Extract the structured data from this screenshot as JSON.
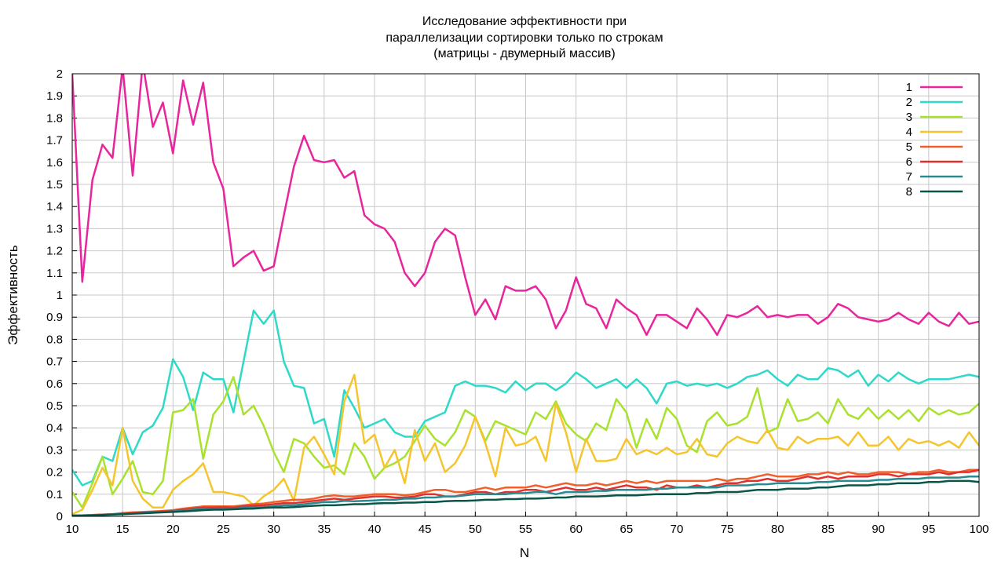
{
  "chart_data": {
    "type": "line",
    "title_lines": [
      "Исследование эффективности при",
      "параллелизации сортировки только по строкам",
      "(матрицы - двумерный массив)"
    ],
    "xlabel": "N",
    "ylabel": "Эффективность",
    "xlim": [
      10,
      100
    ],
    "ylim": [
      0,
      2
    ],
    "x_ticks": [
      10,
      15,
      20,
      25,
      30,
      35,
      40,
      45,
      50,
      55,
      60,
      65,
      70,
      75,
      80,
      85,
      90,
      95,
      100
    ],
    "y_ticks": [
      0,
      0.1,
      0.2,
      0.3,
      0.4,
      0.5,
      0.6,
      0.7,
      0.8,
      0.9,
      1,
      1.1,
      1.2,
      1.3,
      1.4,
      1.5,
      1.6,
      1.7,
      1.8,
      1.9,
      2
    ],
    "grid": true,
    "legend_position": "top-right",
    "x": [
      10,
      11,
      12,
      13,
      14,
      15,
      16,
      17,
      18,
      19,
      20,
      21,
      22,
      23,
      24,
      25,
      26,
      27,
      28,
      29,
      30,
      31,
      32,
      33,
      34,
      35,
      36,
      37,
      38,
      39,
      40,
      41,
      42,
      43,
      44,
      45,
      46,
      47,
      48,
      49,
      50,
      51,
      52,
      53,
      54,
      55,
      56,
      57,
      58,
      59,
      60,
      61,
      62,
      63,
      64,
      65,
      66,
      67,
      68,
      69,
      70,
      71,
      72,
      73,
      74,
      75,
      76,
      77,
      78,
      79,
      80,
      81,
      82,
      83,
      84,
      85,
      86,
      87,
      88,
      89,
      90,
      91,
      92,
      93,
      94,
      95,
      96,
      97,
      98,
      99,
      100
    ],
    "series": [
      {
        "name": "1",
        "color": "#e8259c",
        "values": [
          2.0,
          1.06,
          1.52,
          1.68,
          1.62,
          2.03,
          1.54,
          2.05,
          1.76,
          1.87,
          1.64,
          1.97,
          1.77,
          1.96,
          1.6,
          1.48,
          1.13,
          1.17,
          1.2,
          1.11,
          1.13,
          1.36,
          1.58,
          1.72,
          1.61,
          1.6,
          1.61,
          1.53,
          1.56,
          1.36,
          1.32,
          1.3,
          1.24,
          1.1,
          1.04,
          1.1,
          1.24,
          1.3,
          1.27,
          1.08,
          0.91,
          0.98,
          0.89,
          1.04,
          1.02,
          1.02,
          1.04,
          0.98,
          0.85,
          0.93,
          1.08,
          0.96,
          0.94,
          0.85,
          0.98,
          0.94,
          0.91,
          0.82,
          0.91,
          0.91,
          0.88,
          0.85,
          0.94,
          0.89,
          0.82,
          0.91,
          0.9,
          0.92,
          0.95,
          0.9,
          0.91,
          0.9,
          0.91,
          0.91,
          0.87,
          0.9,
          0.96,
          0.94,
          0.9,
          0.89,
          0.88,
          0.89,
          0.92,
          0.89,
          0.87,
          0.92,
          0.88,
          0.86,
          0.92,
          0.87,
          0.88
        ]
      },
      {
        "name": "2",
        "color": "#2ed9c9",
        "values": [
          0.21,
          0.14,
          0.16,
          0.27,
          0.25,
          0.4,
          0.28,
          0.38,
          0.41,
          0.49,
          0.71,
          0.63,
          0.48,
          0.65,
          0.62,
          0.62,
          0.47,
          0.7,
          0.93,
          0.87,
          0.93,
          0.7,
          0.59,
          0.58,
          0.42,
          0.44,
          0.27,
          0.57,
          0.49,
          0.4,
          0.42,
          0.44,
          0.38,
          0.36,
          0.36,
          0.43,
          0.45,
          0.47,
          0.59,
          0.61,
          0.59,
          0.59,
          0.58,
          0.56,
          0.61,
          0.57,
          0.6,
          0.6,
          0.57,
          0.6,
          0.65,
          0.62,
          0.58,
          0.6,
          0.62,
          0.58,
          0.62,
          0.58,
          0.51,
          0.6,
          0.61,
          0.59,
          0.6,
          0.59,
          0.6,
          0.58,
          0.6,
          0.63,
          0.64,
          0.66,
          0.62,
          0.59,
          0.64,
          0.62,
          0.62,
          0.67,
          0.66,
          0.63,
          0.66,
          0.59,
          0.64,
          0.61,
          0.65,
          0.62,
          0.6,
          0.62,
          0.62,
          0.62,
          0.63,
          0.64,
          0.63
        ]
      },
      {
        "name": "3",
        "color": "#a8e22e",
        "values": [
          0.11,
          0.04,
          0.15,
          0.27,
          0.1,
          0.17,
          0.25,
          0.11,
          0.1,
          0.16,
          0.47,
          0.48,
          0.53,
          0.26,
          0.46,
          0.52,
          0.63,
          0.46,
          0.5,
          0.41,
          0.29,
          0.2,
          0.35,
          0.33,
          0.27,
          0.22,
          0.23,
          0.19,
          0.33,
          0.27,
          0.17,
          0.22,
          0.24,
          0.27,
          0.34,
          0.41,
          0.35,
          0.32,
          0.38,
          0.48,
          0.45,
          0.34,
          0.43,
          0.41,
          0.39,
          0.37,
          0.47,
          0.44,
          0.52,
          0.42,
          0.37,
          0.34,
          0.42,
          0.39,
          0.53,
          0.47,
          0.31,
          0.44,
          0.35,
          0.49,
          0.44,
          0.32,
          0.29,
          0.43,
          0.47,
          0.41,
          0.42,
          0.45,
          0.58,
          0.38,
          0.4,
          0.53,
          0.43,
          0.44,
          0.47,
          0.42,
          0.53,
          0.46,
          0.44,
          0.49,
          0.44,
          0.48,
          0.44,
          0.48,
          0.43,
          0.49,
          0.46,
          0.48,
          0.46,
          0.47,
          0.51
        ]
      },
      {
        "name": "4",
        "color": "#f5c52e",
        "values": [
          0.01,
          0.03,
          0.12,
          0.22,
          0.14,
          0.4,
          0.16,
          0.08,
          0.04,
          0.04,
          0.12,
          0.16,
          0.19,
          0.24,
          0.11,
          0.11,
          0.1,
          0.09,
          0.05,
          0.09,
          0.12,
          0.17,
          0.07,
          0.31,
          0.36,
          0.28,
          0.19,
          0.52,
          0.64,
          0.33,
          0.37,
          0.22,
          0.3,
          0.15,
          0.39,
          0.25,
          0.33,
          0.2,
          0.24,
          0.32,
          0.45,
          0.33,
          0.18,
          0.4,
          0.32,
          0.33,
          0.36,
          0.25,
          0.51,
          0.38,
          0.2,
          0.35,
          0.25,
          0.25,
          0.26,
          0.35,
          0.28,
          0.3,
          0.28,
          0.31,
          0.28,
          0.29,
          0.35,
          0.28,
          0.27,
          0.33,
          0.36,
          0.34,
          0.33,
          0.39,
          0.31,
          0.3,
          0.36,
          0.33,
          0.35,
          0.35,
          0.36,
          0.32,
          0.38,
          0.32,
          0.32,
          0.36,
          0.3,
          0.35,
          0.33,
          0.34,
          0.32,
          0.34,
          0.31,
          0.38,
          0.32
        ]
      },
      {
        "name": "5",
        "color": "#f0602b",
        "values": [
          0.005,
          0.005,
          0.006,
          0.008,
          0.01,
          0.015,
          0.018,
          0.02,
          0.022,
          0.025,
          0.028,
          0.035,
          0.04,
          0.045,
          0.045,
          0.045,
          0.045,
          0.05,
          0.055,
          0.058,
          0.065,
          0.07,
          0.075,
          0.075,
          0.08,
          0.09,
          0.095,
          0.09,
          0.09,
          0.095,
          0.1,
          0.1,
          0.1,
          0.095,
          0.1,
          0.11,
          0.12,
          0.12,
          0.11,
          0.11,
          0.12,
          0.13,
          0.12,
          0.13,
          0.13,
          0.13,
          0.14,
          0.13,
          0.14,
          0.15,
          0.14,
          0.14,
          0.15,
          0.14,
          0.15,
          0.16,
          0.15,
          0.16,
          0.15,
          0.16,
          0.16,
          0.16,
          0.16,
          0.16,
          0.17,
          0.16,
          0.17,
          0.17,
          0.18,
          0.19,
          0.18,
          0.18,
          0.18,
          0.19,
          0.19,
          0.2,
          0.19,
          0.2,
          0.19,
          0.19,
          0.2,
          0.2,
          0.2,
          0.19,
          0.2,
          0.2,
          0.21,
          0.2,
          0.2,
          0.21,
          0.21
        ]
      },
      {
        "name": "6",
        "color": "#e03131",
        "values": [
          0.003,
          0.004,
          0.006,
          0.008,
          0.01,
          0.012,
          0.015,
          0.017,
          0.02,
          0.022,
          0.025,
          0.03,
          0.035,
          0.04,
          0.04,
          0.042,
          0.04,
          0.045,
          0.048,
          0.05,
          0.055,
          0.06,
          0.06,
          0.065,
          0.07,
          0.075,
          0.08,
          0.075,
          0.08,
          0.085,
          0.09,
          0.09,
          0.085,
          0.085,
          0.09,
          0.1,
          0.1,
          0.09,
          0.09,
          0.1,
          0.11,
          0.11,
          0.1,
          0.11,
          0.11,
          0.12,
          0.12,
          0.11,
          0.12,
          0.13,
          0.12,
          0.12,
          0.13,
          0.12,
          0.13,
          0.14,
          0.13,
          0.13,
          0.12,
          0.14,
          0.13,
          0.13,
          0.14,
          0.13,
          0.14,
          0.15,
          0.15,
          0.16,
          0.16,
          0.17,
          0.16,
          0.16,
          0.17,
          0.18,
          0.17,
          0.18,
          0.17,
          0.18,
          0.18,
          0.18,
          0.19,
          0.19,
          0.18,
          0.19,
          0.19,
          0.19,
          0.2,
          0.19,
          0.2,
          0.2,
          0.21
        ]
      },
      {
        "name": "7",
        "color": "#2a8b8f",
        "values": [
          0.002,
          0.003,
          0.005,
          0.007,
          0.009,
          0.011,
          0.013,
          0.015,
          0.018,
          0.02,
          0.022,
          0.026,
          0.03,
          0.034,
          0.034,
          0.035,
          0.035,
          0.038,
          0.04,
          0.042,
          0.045,
          0.05,
          0.05,
          0.055,
          0.06,
          0.065,
          0.065,
          0.07,
          0.068,
          0.07,
          0.072,
          0.075,
          0.075,
          0.08,
          0.08,
          0.085,
          0.085,
          0.09,
          0.09,
          0.095,
          0.1,
          0.1,
          0.1,
          0.1,
          0.105,
          0.105,
          0.11,
          0.11,
          0.1,
          0.11,
          0.11,
          0.11,
          0.115,
          0.115,
          0.12,
          0.12,
          0.12,
          0.12,
          0.125,
          0.125,
          0.13,
          0.13,
          0.13,
          0.13,
          0.13,
          0.14,
          0.14,
          0.14,
          0.145,
          0.145,
          0.15,
          0.15,
          0.15,
          0.15,
          0.155,
          0.155,
          0.16,
          0.16,
          0.16,
          0.16,
          0.165,
          0.165,
          0.17,
          0.17,
          0.17,
          0.175,
          0.175,
          0.175,
          0.175,
          0.18,
          0.18
        ]
      },
      {
        "name": "8",
        "color": "#0b5448",
        "values": [
          0.002,
          0.003,
          0.004,
          0.006,
          0.008,
          0.01,
          0.012,
          0.014,
          0.016,
          0.018,
          0.02,
          0.022,
          0.025,
          0.028,
          0.03,
          0.03,
          0.032,
          0.034,
          0.035,
          0.038,
          0.04,
          0.04,
          0.042,
          0.045,
          0.048,
          0.05,
          0.05,
          0.052,
          0.055,
          0.055,
          0.058,
          0.06,
          0.06,
          0.062,
          0.062,
          0.065,
          0.065,
          0.068,
          0.07,
          0.07,
          0.072,
          0.075,
          0.075,
          0.078,
          0.078,
          0.08,
          0.08,
          0.082,
          0.085,
          0.085,
          0.09,
          0.09,
          0.09,
          0.092,
          0.095,
          0.095,
          0.095,
          0.098,
          0.1,
          0.1,
          0.1,
          0.1,
          0.105,
          0.105,
          0.11,
          0.11,
          0.11,
          0.115,
          0.12,
          0.12,
          0.12,
          0.125,
          0.125,
          0.125,
          0.13,
          0.13,
          0.135,
          0.14,
          0.14,
          0.14,
          0.145,
          0.145,
          0.15,
          0.15,
          0.15,
          0.155,
          0.155,
          0.16,
          0.16,
          0.16,
          0.155
        ]
      }
    ]
  }
}
